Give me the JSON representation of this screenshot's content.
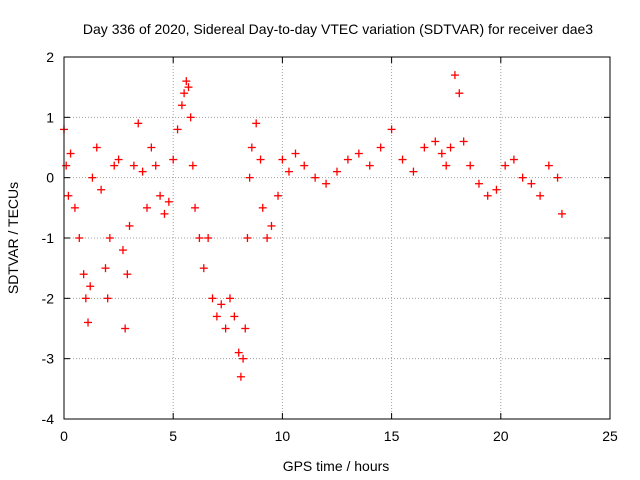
{
  "chart_data": {
    "type": "scatter",
    "title": "Day 336 of 2020, Sidereal Day-to-day VTEC variation (SDTVAR) for receiver dae3",
    "xlabel": "GPS time / hours",
    "ylabel": "SDTVAR / TECUs",
    "xlim": [
      0,
      25
    ],
    "ylim": [
      -4,
      2
    ],
    "x_ticks": [
      "0",
      "5",
      "10",
      "15",
      "20",
      "25"
    ],
    "x_tick_values": [
      0,
      5,
      10,
      15,
      20,
      25
    ],
    "y_ticks": [
      "-4",
      "-3",
      "-2",
      "-1",
      "0",
      "1",
      "2"
    ],
    "y_tick_values": [
      -4,
      -3,
      -2,
      -1,
      0,
      1,
      2
    ],
    "grid": true,
    "marker": "plus",
    "series": [
      {
        "name": "SDTVAR",
        "color": "#ff0000",
        "x": [
          0.0,
          0.1,
          0.2,
          0.3,
          0.5,
          0.7,
          0.9,
          1.0,
          1.1,
          1.2,
          1.3,
          1.5,
          1.7,
          1.9,
          2.0,
          2.1,
          2.3,
          2.5,
          2.7,
          2.8,
          2.9,
          3.0,
          3.2,
          3.4,
          3.6,
          3.8,
          4.0,
          4.2,
          4.4,
          4.6,
          4.8,
          5.0,
          5.2,
          5.4,
          5.5,
          5.6,
          5.7,
          5.8,
          5.9,
          6.0,
          6.2,
          6.4,
          6.6,
          6.8,
          7.0,
          7.2,
          7.4,
          7.6,
          7.8,
          8.0,
          8.1,
          8.2,
          8.3,
          8.4,
          8.5,
          8.6,
          8.8,
          9.0,
          9.1,
          9.3,
          9.5,
          9.8,
          10.0,
          10.3,
          10.6,
          11.0,
          11.5,
          12.0,
          12.5,
          13.0,
          13.5,
          14.0,
          14.5,
          15.0,
          15.5,
          16.0,
          16.5,
          17.0,
          17.3,
          17.5,
          17.7,
          17.9,
          18.1,
          18.3,
          18.6,
          19.0,
          19.4,
          19.8,
          20.2,
          20.6,
          21.0,
          21.4,
          21.8,
          22.2,
          22.6,
          22.8
        ],
        "y": [
          0.8,
          0.2,
          -0.3,
          0.4,
          -0.5,
          -1.0,
          -1.6,
          -2.0,
          -2.4,
          -1.8,
          0.0,
          0.5,
          -0.2,
          -1.5,
          -2.0,
          -1.0,
          0.2,
          0.3,
          -1.2,
          -2.5,
          -1.6,
          -0.8,
          0.2,
          0.9,
          0.1,
          -0.5,
          0.5,
          0.2,
          -0.3,
          -0.6,
          -0.4,
          0.3,
          0.8,
          1.2,
          1.4,
          1.6,
          1.5,
          1.0,
          0.2,
          -0.5,
          -1.0,
          -1.5,
          -1.0,
          -2.0,
          -2.3,
          -2.1,
          -2.5,
          -2.0,
          -2.3,
          -2.9,
          -3.3,
          -3.0,
          -2.5,
          -1.0,
          0.0,
          0.5,
          0.9,
          0.3,
          -0.5,
          -1.0,
          -0.8,
          -0.3,
          0.3,
          0.1,
          0.4,
          0.2,
          0.0,
          -0.1,
          0.1,
          0.3,
          0.4,
          0.2,
          0.5,
          0.8,
          0.3,
          0.1,
          0.5,
          0.6,
          0.4,
          0.2,
          0.5,
          1.7,
          1.4,
          0.6,
          0.2,
          -0.1,
          -0.3,
          -0.2,
          0.2,
          0.3,
          0.0,
          -0.1,
          -0.3,
          0.2,
          0.0,
          -0.6
        ]
      }
    ]
  }
}
